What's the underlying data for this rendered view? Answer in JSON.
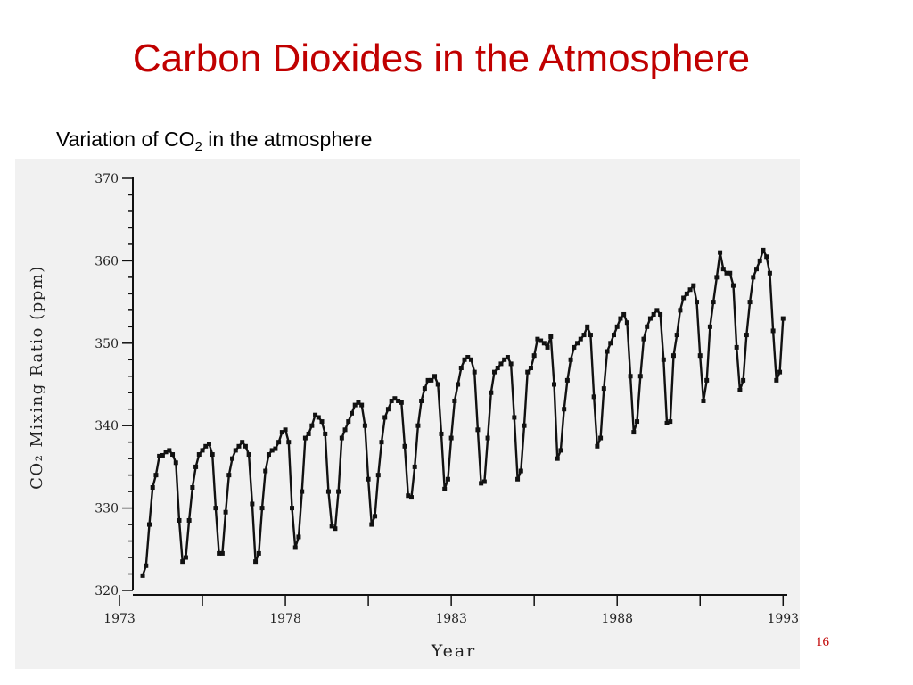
{
  "slide": {
    "title": "Carbon Dioxides in the Atmosphere",
    "subtitle_prefix": "Variation of CO",
    "subtitle_sub": "2",
    "subtitle_suffix": " in the atmosphere",
    "page_number": "16"
  },
  "chart_data": {
    "type": "line",
    "xlabel": "Year",
    "ylabel": "CO₂ Mixing Ratio (ppm)",
    "xlim": [
      1973,
      1993.1
    ],
    "ylim": [
      320,
      370
    ],
    "x_ticks": [
      1973,
      1978,
      1983,
      1988,
      1993
    ],
    "y_ticks": [
      320,
      330,
      340,
      350,
      360,
      370
    ],
    "grid": false,
    "series": [
      {
        "points": [
          [
            1973.7,
            321.8
          ],
          [
            1973.8,
            323.0
          ],
          [
            1973.9,
            328.0
          ],
          [
            1974.0,
            332.5
          ],
          [
            1974.1,
            334.0
          ],
          [
            1974.2,
            336.3
          ],
          [
            1974.3,
            336.4
          ],
          [
            1974.4,
            336.8
          ],
          [
            1974.5,
            337.0
          ],
          [
            1974.6,
            336.5
          ],
          [
            1974.7,
            335.5
          ],
          [
            1974.8,
            328.5
          ],
          [
            1974.9,
            323.5
          ],
          [
            1975.0,
            324.0
          ],
          [
            1975.1,
            328.5
          ],
          [
            1975.2,
            332.5
          ],
          [
            1975.3,
            335.0
          ],
          [
            1975.4,
            336.5
          ],
          [
            1975.5,
            337.0
          ],
          [
            1975.6,
            337.5
          ],
          [
            1975.7,
            337.8
          ],
          [
            1975.8,
            336.5
          ],
          [
            1975.9,
            330.0
          ],
          [
            1976.0,
            324.5
          ],
          [
            1976.1,
            324.5
          ],
          [
            1976.2,
            329.5
          ],
          [
            1976.3,
            334.0
          ],
          [
            1976.4,
            336.0
          ],
          [
            1976.5,
            337.0
          ],
          [
            1976.6,
            337.5
          ],
          [
            1976.7,
            338.0
          ],
          [
            1976.8,
            337.5
          ],
          [
            1976.9,
            336.5
          ],
          [
            1977.0,
            330.5
          ],
          [
            1977.1,
            323.5
          ],
          [
            1977.2,
            324.5
          ],
          [
            1977.3,
            330.0
          ],
          [
            1977.4,
            334.5
          ],
          [
            1977.5,
            336.5
          ],
          [
            1977.6,
            337.0
          ],
          [
            1977.7,
            337.2
          ],
          [
            1977.8,
            338.0
          ],
          [
            1977.9,
            339.2
          ],
          [
            1978.0,
            339.5
          ],
          [
            1978.1,
            338.0
          ],
          [
            1978.2,
            330.0
          ],
          [
            1978.3,
            325.2
          ],
          [
            1978.4,
            326.5
          ],
          [
            1978.5,
            332.0
          ],
          [
            1978.6,
            338.5
          ],
          [
            1978.7,
            339.0
          ],
          [
            1978.8,
            340.0
          ],
          [
            1978.9,
            341.3
          ],
          [
            1979.0,
            341.0
          ],
          [
            1979.1,
            340.5
          ],
          [
            1979.2,
            339.0
          ],
          [
            1979.3,
            332.0
          ],
          [
            1979.4,
            327.8
          ],
          [
            1979.5,
            327.5
          ],
          [
            1979.6,
            332.0
          ],
          [
            1979.7,
            338.5
          ],
          [
            1979.8,
            339.5
          ],
          [
            1979.9,
            340.5
          ],
          [
            1980.0,
            341.5
          ],
          [
            1980.1,
            342.5
          ],
          [
            1980.2,
            342.8
          ],
          [
            1980.3,
            342.5
          ],
          [
            1980.4,
            340.0
          ],
          [
            1980.5,
            333.5
          ],
          [
            1980.6,
            328.0
          ],
          [
            1980.7,
            329.0
          ],
          [
            1980.8,
            334.0
          ],
          [
            1980.9,
            338.0
          ],
          [
            1981.0,
            341.0
          ],
          [
            1981.1,
            342.0
          ],
          [
            1981.2,
            343.0
          ],
          [
            1981.3,
            343.3
          ],
          [
            1981.4,
            343.0
          ],
          [
            1981.5,
            342.8
          ],
          [
            1981.6,
            337.5
          ],
          [
            1981.7,
            331.5
          ],
          [
            1981.8,
            331.3
          ],
          [
            1981.9,
            335.0
          ],
          [
            1982.0,
            340.0
          ],
          [
            1982.1,
            343.0
          ],
          [
            1982.2,
            344.5
          ],
          [
            1982.3,
            345.5
          ],
          [
            1982.4,
            345.5
          ],
          [
            1982.5,
            346.0
          ],
          [
            1982.6,
            345.0
          ],
          [
            1982.7,
            339.0
          ],
          [
            1982.8,
            332.3
          ],
          [
            1982.9,
            333.5
          ],
          [
            1983.0,
            338.5
          ],
          [
            1983.1,
            343.0
          ],
          [
            1983.2,
            345.0
          ],
          [
            1983.3,
            347.0
          ],
          [
            1983.4,
            348.0
          ],
          [
            1983.5,
            348.3
          ],
          [
            1983.6,
            348.0
          ],
          [
            1983.7,
            346.5
          ],
          [
            1983.8,
            339.5
          ],
          [
            1983.9,
            333.0
          ],
          [
            1984.0,
            333.2
          ],
          [
            1984.1,
            338.5
          ],
          [
            1984.2,
            344.0
          ],
          [
            1984.3,
            346.5
          ],
          [
            1984.4,
            347.0
          ],
          [
            1984.5,
            347.5
          ],
          [
            1984.6,
            348.0
          ],
          [
            1984.7,
            348.3
          ],
          [
            1984.8,
            347.5
          ],
          [
            1984.9,
            341.0
          ],
          [
            1985.0,
            333.5
          ],
          [
            1985.1,
            334.5
          ],
          [
            1985.2,
            340.0
          ],
          [
            1985.3,
            346.5
          ],
          [
            1985.4,
            347.0
          ],
          [
            1985.5,
            348.5
          ],
          [
            1985.6,
            350.5
          ],
          [
            1985.7,
            350.3
          ],
          [
            1985.8,
            350.0
          ],
          [
            1985.9,
            349.5
          ],
          [
            1986.0,
            350.8
          ],
          [
            1986.1,
            345.0
          ],
          [
            1986.2,
            336.0
          ],
          [
            1986.3,
            337.0
          ],
          [
            1986.4,
            342.0
          ],
          [
            1986.5,
            345.5
          ],
          [
            1986.6,
            348.0
          ],
          [
            1986.7,
            349.5
          ],
          [
            1986.8,
            350.0
          ],
          [
            1986.9,
            350.5
          ],
          [
            1987.0,
            351.0
          ],
          [
            1987.1,
            352.0
          ],
          [
            1987.2,
            351.0
          ],
          [
            1987.3,
            343.5
          ],
          [
            1987.4,
            337.5
          ],
          [
            1987.5,
            338.5
          ],
          [
            1987.6,
            344.5
          ],
          [
            1987.7,
            349.0
          ],
          [
            1987.8,
            350.0
          ],
          [
            1987.9,
            351.0
          ],
          [
            1988.0,
            352.0
          ],
          [
            1988.1,
            353.0
          ],
          [
            1988.2,
            353.5
          ],
          [
            1988.3,
            352.5
          ],
          [
            1988.4,
            346.0
          ],
          [
            1988.5,
            339.2
          ],
          [
            1988.6,
            340.5
          ],
          [
            1988.7,
            346.0
          ],
          [
            1988.8,
            350.5
          ],
          [
            1988.9,
            352.0
          ],
          [
            1989.0,
            353.0
          ],
          [
            1989.1,
            353.5
          ],
          [
            1989.2,
            354.0
          ],
          [
            1989.3,
            353.5
          ],
          [
            1989.4,
            348.0
          ],
          [
            1989.5,
            340.3
          ],
          [
            1989.6,
            340.5
          ],
          [
            1989.7,
            348.5
          ],
          [
            1989.8,
            351.0
          ],
          [
            1989.9,
            354.0
          ],
          [
            1990.0,
            355.5
          ],
          [
            1990.1,
            356.0
          ],
          [
            1990.2,
            356.5
          ],
          [
            1990.3,
            357.0
          ],
          [
            1990.4,
            355.0
          ],
          [
            1990.5,
            348.5
          ],
          [
            1990.6,
            343.0
          ],
          [
            1990.7,
            345.5
          ],
          [
            1990.8,
            352.0
          ],
          [
            1990.9,
            355.0
          ],
          [
            1991.0,
            358.0
          ],
          [
            1991.1,
            361.0
          ],
          [
            1991.2,
            359.0
          ],
          [
            1991.3,
            358.5
          ],
          [
            1991.4,
            358.5
          ],
          [
            1991.5,
            357.0
          ],
          [
            1991.6,
            349.5
          ],
          [
            1991.7,
            344.3
          ],
          [
            1991.8,
            345.5
          ],
          [
            1991.9,
            351.0
          ],
          [
            1992.0,
            355.0
          ],
          [
            1992.1,
            358.0
          ],
          [
            1992.2,
            359.0
          ],
          [
            1992.3,
            360.0
          ],
          [
            1992.4,
            361.3
          ],
          [
            1992.5,
            360.5
          ],
          [
            1992.6,
            358.5
          ],
          [
            1992.7,
            351.5
          ],
          [
            1992.8,
            345.5
          ],
          [
            1992.9,
            346.5
          ],
          [
            1993.0,
            353.0
          ]
        ]
      }
    ]
  }
}
